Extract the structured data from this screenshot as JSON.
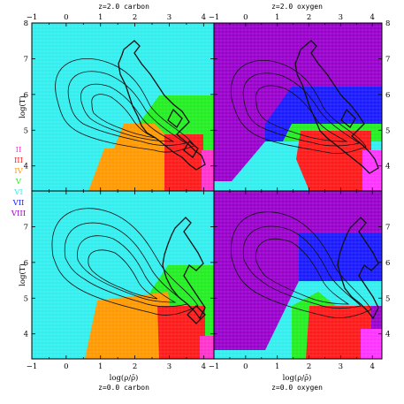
{
  "colors": {
    "II": "#ff33cc",
    "III": "#ff1a1a",
    "IV": "#ff9900",
    "V": "#22ee22",
    "VI": "#33eeee",
    "VII": "#1a1aff",
    "VIII": "#9900cc",
    "outer_magenta": "#ff33ff",
    "contour": "#111111"
  },
  "legend": [
    "II",
    "III",
    "IV",
    "V",
    "VI",
    "VII",
    "VIII"
  ],
  "chart_data": [
    {
      "type": "heatmap",
      "title": "z=2.0 carbon",
      "xlabel": "",
      "ylabel": "log(T)",
      "xlim": [
        -1,
        4.3
      ],
      "ylim": [
        3.3,
        8
      ],
      "xticks": [
        "−1",
        "0",
        "1",
        "2",
        "3",
        "4"
      ],
      "yticks": [
        "4",
        "5",
        "6",
        "7",
        "8"
      ],
      "regions": [
        {
          "state": "VI",
          "description": "background"
        },
        {
          "state": "IV",
          "bounds": "logT 3.3–4.6, log rho 1–3.5"
        },
        {
          "state": "V",
          "bounds": "logT 4.6–6.0"
        },
        {
          "state": "III",
          "bounds": "logT 3.5–4.9, log rho 2.4–4"
        },
        {
          "state": "II",
          "bounds": "log rho > 3.5"
        }
      ]
    },
    {
      "type": "heatmap",
      "title": "z=2.0 oxygen",
      "xlabel": "",
      "ylabel": "",
      "xlim": [
        -1,
        4.3
      ],
      "ylim": [
        3.3,
        8
      ],
      "xticks": [
        "−1",
        "0",
        "1",
        "2",
        "3",
        "4"
      ],
      "yticks": [
        "4",
        "5",
        "6",
        "7",
        "8"
      ],
      "regions": [
        {
          "state": "VIII",
          "description": "background"
        },
        {
          "state": "VII",
          "bounds": "logT 5.5–6.5"
        },
        {
          "state": "VI",
          "bounds": "logT 3.3–5.2"
        },
        {
          "state": "V",
          "bounds": "logT 4.3–5.0, log rho 1.8–3"
        },
        {
          "state": "III",
          "bounds": "logT 3.5–5.0, log rho 2.2–4"
        },
        {
          "state": "II",
          "bounds": "log rho > 3.6"
        }
      ]
    },
    {
      "type": "heatmap",
      "title": "",
      "xlabel": "log(ρ/ρ̄)",
      "subtitle": "z=0.0 carbon",
      "ylabel": "log(T)",
      "xlim": [
        -1,
        4.3
      ],
      "ylim": [
        3.3,
        8
      ],
      "xticks": [
        "−1",
        "0",
        "1",
        "2",
        "3",
        "4"
      ],
      "yticks": [
        "4",
        "5",
        "6",
        "7"
      ],
      "regions": [
        {
          "state": "VI",
          "description": "background"
        },
        {
          "state": "IV",
          "bounds": "logT 3.3–5.0, log rho 0.8–3"
        },
        {
          "state": "V",
          "bounds": "logT 4.9–5.8"
        },
        {
          "state": "III",
          "bounds": "logT 3.5–4.8, log rho 2.5–4"
        },
        {
          "state": "II",
          "bounds": "log rho > 3.8"
        }
      ]
    },
    {
      "type": "heatmap",
      "title": "",
      "xlabel": "log(ρ/ρ̄)",
      "subtitle": "z=0.0 oxygen",
      "ylabel": "",
      "xlim": [
        -1,
        4.3
      ],
      "ylim": [
        3.3,
        8
      ],
      "xticks": [
        "−1",
        "0",
        "1",
        "2",
        "3",
        "4"
      ],
      "yticks": [
        "4",
        "5",
        "6",
        "7"
      ],
      "regions": [
        {
          "state": "VIII",
          "description": "background"
        },
        {
          "state": "VII",
          "bounds": "logT 5.8–6.8"
        },
        {
          "state": "VI",
          "bounds": "logT 3.3–5.5"
        },
        {
          "state": "V",
          "bounds": "logT 4.0–5.3, log rho 1.6–2.5"
        },
        {
          "state": "III",
          "bounds": "logT 3.5–5.2, log rho 2.2–4"
        },
        {
          "state": "II",
          "bounds": "log rho > 3.6"
        }
      ]
    }
  ]
}
